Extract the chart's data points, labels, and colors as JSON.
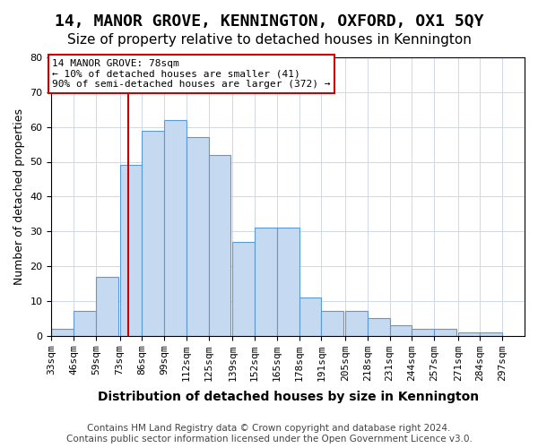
{
  "title": "14, MANOR GROVE, KENNINGTON, OXFORD, OX1 5QY",
  "subtitle": "Size of property relative to detached houses in Kennington",
  "xlabel": "Distribution of detached houses by size in Kennington",
  "ylabel": "Number of detached properties",
  "bins": [
    33,
    46,
    59,
    73,
    86,
    99,
    112,
    125,
    139,
    152,
    165,
    178,
    191,
    205,
    218,
    231,
    244,
    257,
    271,
    284,
    297
  ],
  "heights": [
    2,
    7,
    17,
    49,
    59,
    62,
    57,
    52,
    27,
    31,
    31,
    11,
    7,
    7,
    5,
    3,
    2,
    2,
    1,
    1
  ],
  "bar_color": "#c5d9f0",
  "bar_edge_color": "#5b9bd5",
  "vline_x": 78,
  "vline_color": "#cc0000",
  "annotation_text": "14 MANOR GROVE: 78sqm\n← 10% of detached houses are smaller (41)\n90% of semi-detached houses are larger (372) →",
  "annotation_box_color": "#ffffff",
  "annotation_box_edge": "#cc0000",
  "grid_color": "#d0d8e8",
  "footer": "Contains HM Land Registry data © Crown copyright and database right 2024.\nContains public sector information licensed under the Open Government Licence v3.0.",
  "ylim": [
    0,
    80
  ],
  "yticks": [
    0,
    10,
    20,
    30,
    40,
    50,
    60,
    70,
    80
  ],
  "title_fontsize": 13,
  "subtitle_fontsize": 11,
  "xlabel_fontsize": 10,
  "ylabel_fontsize": 9,
  "tick_fontsize": 8,
  "footer_fontsize": 7.5
}
